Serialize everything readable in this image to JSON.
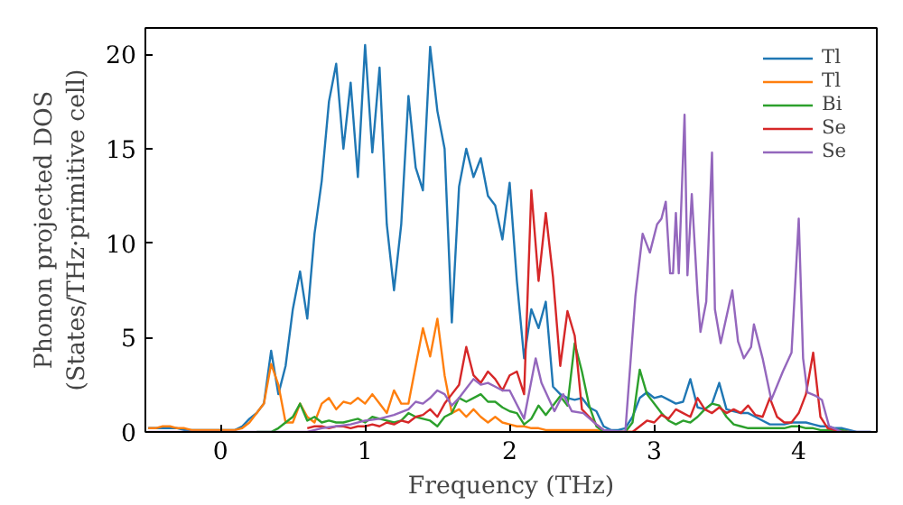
{
  "chart_data": {
    "type": "line",
    "xlabel": "Frequency (THz)",
    "ylabel": "Phonon projected DOS\n(States/THz·primitive cell)",
    "x": [
      -0.5,
      -0.45,
      -0.4,
      -0.35,
      -0.3,
      -0.25,
      -0.2,
      -0.15,
      -0.1,
      -0.05,
      0,
      0.05,
      0.1,
      0.15,
      0.2,
      0.25,
      0.3,
      0.35,
      0.4,
      0.45,
      0.5,
      0.55,
      0.6,
      0.65,
      0.7,
      0.75,
      0.8,
      0.85,
      0.9,
      0.95,
      1,
      1.05,
      1.1,
      1.15,
      1.2,
      1.25,
      1.3,
      1.35,
      1.4,
      1.45,
      1.5,
      1.55,
      1.6,
      1.65,
      1.7,
      1.75,
      1.8,
      1.85,
      1.9,
      1.95,
      2,
      2.05,
      2.1,
      2.15,
      2.2,
      2.25,
      2.3,
      2.35,
      2.4,
      2.45,
      2.5,
      2.55,
      2.6,
      2.65,
      2.7,
      2.75,
      2.8,
      2.85,
      2.9,
      2.95,
      3,
      3.05,
      3.1,
      3.15,
      3.2,
      3.25,
      3.3,
      3.35,
      3.4,
      3.45,
      3.5,
      3.55,
      3.6,
      3.65,
      3.7,
      3.75,
      3.8,
      3.85,
      3.9,
      3.95,
      4,
      4.05,
      4.1,
      4.15,
      4.2,
      4.25,
      4.3,
      4.35,
      4.4,
      4.45,
      4.5
    ],
    "series": [
      {
        "name": "Tl",
        "color": "#1f77b4",
        "values": [
          0.2,
          0.2,
          0.2,
          0.2,
          0.2,
          0.1,
          0.1,
          0.1,
          0.1,
          0.1,
          0.1,
          0.1,
          0.1,
          0.3,
          0.7,
          1.0,
          1.5,
          4.3,
          2.0,
          3.5,
          6.5,
          8.5,
          6.0,
          10.5,
          13.3,
          17.5,
          19.5,
          15.0,
          18.5,
          13.5,
          20.5,
          14.8,
          19.3,
          11.0,
          7.5,
          11.0,
          17.8,
          14.0,
          12.8,
          20.4,
          17.0,
          15.0,
          5.8,
          13.0,
          15.0,
          13.5,
          14.5,
          12.5,
          12.0,
          10.2,
          13.2,
          8.0,
          3.9,
          6.5,
          5.5,
          6.9,
          2.4,
          2.0,
          1.8,
          1.7,
          1.8,
          1.3,
          1.1,
          0.3,
          0.1,
          0.1,
          0.2,
          0.8,
          1.8,
          2.1,
          1.8,
          1.9,
          1.7,
          1.5,
          1.6,
          2.8,
          1.3,
          1.2,
          1.5,
          2.6,
          1.2,
          1.1,
          1.0,
          1.0,
          0.8,
          0.6,
          0.4,
          0.4,
          0.4,
          0.5,
          0.5,
          0.5,
          0.4,
          0.3,
          0.3,
          0.2,
          0.2,
          0.1,
          0,
          0,
          0
        ]
      },
      {
        "name": "Tl",
        "color": "#ff7f0e",
        "x": [
          -0.5,
          -0.45,
          -0.4,
          -0.35,
          -0.3,
          -0.25,
          -0.2,
          -0.15,
          -0.1,
          -0.05,
          0,
          0.05,
          0.1,
          0.15,
          0.2,
          0.25,
          0.3,
          0.35,
          0.4,
          0.45,
          0.5,
          0.55,
          0.6,
          0.65,
          0.7,
          0.75,
          0.8,
          0.85,
          0.9,
          0.95,
          1,
          1.05,
          1.1,
          1.15,
          1.2,
          1.25,
          1.3,
          1.35,
          1.4,
          1.45,
          1.5,
          1.55,
          1.6,
          1.65,
          1.7,
          1.75,
          1.8,
          1.85,
          1.9,
          1.95,
          2,
          2.05,
          2.1,
          2.15,
          2.2,
          2.25,
          2.3,
          2.35,
          2.4,
          2.45,
          2.5,
          2.55,
          2.6,
          2.65,
          2.7,
          2.75,
          2.8,
          2.85,
          2.9
        ],
        "values": [
          0.2,
          0.2,
          0.3,
          0.3,
          0.2,
          0.2,
          0.1,
          0.1,
          0.1,
          0.1,
          0.1,
          0.1,
          0.1,
          0.2,
          0.5,
          1.0,
          1.5,
          3.6,
          2.5,
          0.5,
          0.5,
          1.5,
          0.8,
          0.5,
          1.5,
          1.8,
          1.2,
          1.6,
          1.5,
          1.8,
          1.5,
          2.0,
          1.5,
          1.0,
          2.2,
          1.5,
          1.5,
          3.5,
          5.5,
          4.0,
          6.0,
          3.0,
          1.0,
          1.2,
          0.8,
          1.2,
          0.8,
          0.5,
          0.8,
          0.5,
          0.4,
          0.3,
          0.3,
          0.2,
          0.2,
          0.1,
          0.1,
          0.1,
          0.1,
          0.1,
          0.1,
          0.1,
          0.1,
          0,
          0,
          0,
          0,
          0,
          0
        ]
      },
      {
        "name": "Bi",
        "color": "#2ca02c",
        "x": [
          0.25,
          0.3,
          0.35,
          0.4,
          0.45,
          0.5,
          0.55,
          0.6,
          0.65,
          0.7,
          0.75,
          0.8,
          0.85,
          0.9,
          0.95,
          1,
          1.05,
          1.1,
          1.15,
          1.2,
          1.25,
          1.3,
          1.35,
          1.4,
          1.45,
          1.5,
          1.55,
          1.6,
          1.65,
          1.7,
          1.75,
          1.8,
          1.85,
          1.9,
          1.95,
          2,
          2.05,
          2.1,
          2.15,
          2.2,
          2.25,
          2.3,
          2.35,
          2.4,
          2.45,
          2.5,
          2.55,
          2.6,
          2.65,
          2.7,
          2.75,
          2.8,
          2.85,
          2.9,
          2.95,
          3,
          3.05,
          3.1,
          3.15,
          3.2,
          3.25,
          3.3,
          3.35,
          3.4,
          3.45,
          3.5,
          3.55,
          3.6,
          3.65,
          3.7,
          3.75,
          3.8,
          3.85,
          3.9,
          3.95,
          4,
          4.05,
          4.1,
          4.15,
          4.2,
          4.25,
          4.3,
          4.35
        ],
        "values": [
          0,
          0,
          0,
          0.2,
          0.5,
          0.8,
          1.5,
          0.6,
          0.8,
          0.5,
          0.6,
          0.5,
          0.5,
          0.6,
          0.7,
          0.5,
          0.8,
          0.7,
          0.6,
          0.5,
          0.6,
          1.0,
          0.8,
          0.7,
          0.6,
          0.3,
          0.8,
          1.0,
          1.8,
          1.6,
          1.8,
          2.0,
          1.6,
          1.6,
          1.3,
          1.1,
          1.0,
          0.4,
          0.7,
          1.4,
          0.9,
          1.4,
          1.9,
          1.4,
          4.7,
          3.2,
          1.4,
          0.3,
          0,
          0,
          0,
          0,
          0.5,
          3.3,
          2.0,
          1.5,
          1.0,
          0.6,
          0.4,
          0.6,
          0.5,
          0.8,
          1.2,
          1.5,
          1.4,
          0.8,
          0.4,
          0.3,
          0.2,
          0.2,
          0.2,
          0.2,
          0.2,
          0.2,
          0.3,
          0.3,
          0.2,
          0.2,
          0.1,
          0.1,
          0.1,
          0.1,
          0
        ]
      },
      {
        "name": "Se",
        "color": "#d62728",
        "x": [
          0.6,
          0.65,
          0.7,
          0.75,
          0.8,
          0.85,
          0.9,
          0.95,
          1,
          1.05,
          1.1,
          1.15,
          1.2,
          1.25,
          1.3,
          1.35,
          1.4,
          1.45,
          1.5,
          1.55,
          1.6,
          1.65,
          1.7,
          1.75,
          1.8,
          1.85,
          1.9,
          1.95,
          2,
          2.05,
          2.1,
          2.15,
          2.2,
          2.25,
          2.3,
          2.35,
          2.4,
          2.45,
          2.5,
          2.55,
          2.6,
          2.65,
          2.7,
          2.75,
          2.8,
          2.85,
          2.9,
          2.95,
          3,
          3.05,
          3.1,
          3.15,
          3.2,
          3.25,
          3.3,
          3.35,
          3.4,
          3.45,
          3.5,
          3.55,
          3.6,
          3.65,
          3.7,
          3.75,
          3.8,
          3.85,
          3.9,
          3.95,
          4,
          4.05,
          4.1,
          4.15,
          4.2,
          4.25,
          4.3,
          4.35
        ],
        "values": [
          0.2,
          0.3,
          0.3,
          0.2,
          0.3,
          0.3,
          0.2,
          0.3,
          0.3,
          0.4,
          0.3,
          0.5,
          0.4,
          0.6,
          0.5,
          0.8,
          0.9,
          1.2,
          0.8,
          1.5,
          2.0,
          2.5,
          4.5,
          3.0,
          2.6,
          3.2,
          2.8,
          2.2,
          3.0,
          3.2,
          2.0,
          12.8,
          8.0,
          11.6,
          8.2,
          3.5,
          6.4,
          5.1,
          1.2,
          0.8,
          0.4,
          0.1,
          0,
          0,
          0,
          0,
          0.3,
          0.6,
          0.5,
          0.9,
          0.7,
          1.2,
          1.0,
          0.8,
          1.8,
          1.2,
          1.0,
          1.3,
          1.0,
          1.2,
          1.0,
          1.4,
          0.9,
          0.8,
          1.8,
          0.8,
          0.5,
          0.5,
          1.0,
          2.0,
          4.2,
          0.8,
          0.2,
          0.1,
          0,
          0
        ]
      },
      {
        "name": "Se",
        "color": "#9467bd",
        "x": [
          -0.5,
          0.6,
          0.7,
          0.8,
          0.9,
          1.0,
          1.1,
          1.2,
          1.3,
          1.35,
          1.4,
          1.45,
          1.5,
          1.55,
          1.6,
          1.65,
          1.7,
          1.75,
          1.8,
          1.85,
          1.9,
          1.95,
          2.0,
          2.1,
          2.18,
          2.22,
          2.31,
          2.37,
          2.43,
          2.51,
          2.6,
          2.65,
          2.8,
          2.87,
          2.92,
          2.97,
          3.02,
          3.05,
          3.08,
          3.11,
          3.13,
          3.15,
          3.17,
          3.21,
          3.23,
          3.26,
          3.3,
          3.32,
          3.36,
          3.4,
          3.42,
          3.46,
          3.54,
          3.58,
          3.62,
          3.67,
          3.69,
          3.75,
          3.81,
          3.89,
          3.95,
          4.0,
          4.03,
          4.06,
          4.12,
          4.16,
          4.21,
          4.3,
          4.5
        ],
        "values": [
          0,
          0,
          0.2,
          0.3,
          0.4,
          0.6,
          0.7,
          0.9,
          1.2,
          1.6,
          1.5,
          1.8,
          2.2,
          2.0,
          1.4,
          1.8,
          2.3,
          2.8,
          2.5,
          2.6,
          2.4,
          2.2,
          2.2,
          0.7,
          3.9,
          2.6,
          1.1,
          2.0,
          1.1,
          1.0,
          0.4,
          0.1,
          0,
          7.2,
          10.5,
          9.5,
          11.0,
          11.3,
          12.2,
          8.4,
          8.4,
          11.6,
          8.4,
          16.8,
          8.3,
          12.6,
          7.3,
          5.3,
          6.9,
          14.8,
          6.5,
          4.7,
          7.5,
          4.8,
          3.9,
          4.5,
          5.7,
          3.9,
          1.7,
          3.2,
          4.2,
          11.3,
          3.9,
          2.1,
          1.9,
          1.7,
          0.3,
          0,
          0
        ]
      }
    ],
    "xlim": [
      -0.52,
      4.54
    ],
    "ylim": [
      0,
      21.4
    ],
    "xticks": [
      0,
      1,
      2,
      3,
      4
    ],
    "yticks": [
      0,
      5,
      10,
      15,
      20
    ],
    "grid": false,
    "legend": "top right",
    "line_style": "solid",
    "marker": "none"
  }
}
